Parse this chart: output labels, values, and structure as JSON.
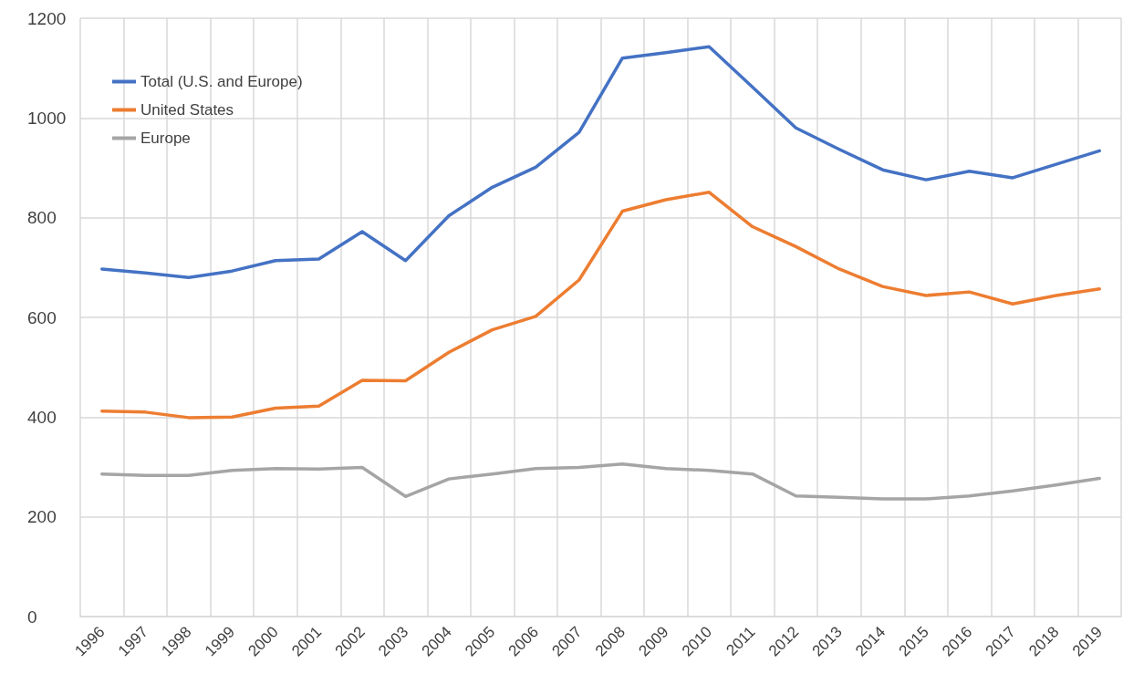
{
  "chart_data": {
    "type": "line",
    "categories": [
      "1996",
      "1997",
      "1998",
      "1999",
      "2000",
      "2001",
      "2002",
      "2003",
      "2004",
      "2005",
      "2006",
      "2007",
      "2008",
      "2009",
      "2010",
      "2011",
      "2012",
      "2013",
      "2014",
      "2015",
      "2016",
      "2017",
      "2018",
      "2019"
    ],
    "series": [
      {
        "name": "Total (U.S. and Europe)",
        "color": "#4472c4",
        "values": [
          697,
          689,
          680,
          693,
          714,
          717,
          772,
          714,
          804,
          861,
          901,
          971,
          1120,
          1131,
          1143,
          1062,
          980,
          937,
          896,
          876,
          893,
          880,
          907,
          934
        ]
      },
      {
        "name": "United States",
        "color": "#ed7d31",
        "values": [
          412,
          410,
          399,
          400,
          418,
          422,
          474,
          473,
          530,
          575,
          602,
          675,
          813,
          836,
          851,
          782,
          742,
          697,
          662,
          644,
          651,
          627,
          644,
          657
        ]
      },
      {
        "name": "Europe",
        "color": "#a5a5a5",
        "values": [
          286,
          283,
          283,
          293,
          297,
          296,
          299,
          241,
          276,
          286,
          297,
          299,
          306,
          297,
          293,
          286,
          242,
          239,
          236,
          236,
          242,
          252,
          264,
          277
        ]
      }
    ],
    "ylim": [
      0,
      1200
    ],
    "yticks": [
      0,
      200,
      400,
      600,
      800,
      1000,
      1200
    ],
    "grid": true,
    "legend": "top left",
    "marker": "none",
    "line_style": "solid"
  }
}
